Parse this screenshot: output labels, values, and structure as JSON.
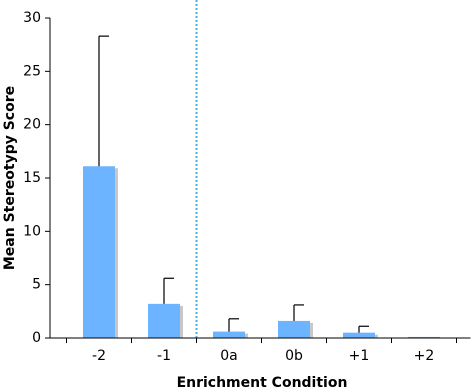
{
  "chart_data": {
    "type": "bar",
    "x_label": "Enrichment Condition",
    "y_label": "Mean Stereotypy Score",
    "categories": [
      "-2",
      "-1",
      "0a",
      "0b",
      "+1",
      "+2"
    ],
    "values": [
      16.1,
      3.2,
      0.6,
      1.6,
      0.5,
      0.1
    ],
    "errors": [
      12.2,
      2.4,
      1.2,
      1.5,
      0.6,
      0
    ],
    "color": "#6cb4ff",
    "ylim": [
      0,
      30
    ],
    "yticks": [
      0,
      5,
      10,
      15,
      20,
      25,
      30
    ],
    "grid": false
  }
}
